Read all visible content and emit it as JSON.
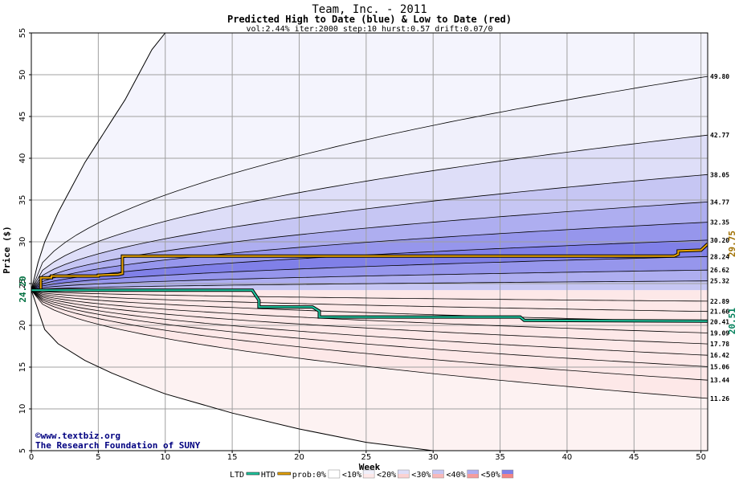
{
  "chart_data": {
    "type": "area",
    "title": "Team, Inc. - 2011",
    "subtitle": "Predicted High to Date (blue) &  Low to Date (red)",
    "params": "vol:2.44% iter:2000 step:10 hurst:0.57 drift:0.07/0",
    "xlabel": "Week",
    "ylabel": "Price ($)",
    "xlim": [
      0,
      50.5
    ],
    "ylim": [
      5,
      55
    ],
    "x_ticks": [
      0,
      5,
      10,
      15,
      20,
      25,
      30,
      35,
      40,
      45,
      50
    ],
    "y_ticks": [
      5,
      10,
      15,
      20,
      25,
      30,
      35,
      40,
      45,
      50,
      55
    ],
    "grid": true,
    "start_price": 24.2,
    "start_price_label": "24.20",
    "upper_bands": [
      {
        "end": 49.8,
        "label": "49.80",
        "fill": "#f0f0fb"
      },
      {
        "end": 42.77,
        "label": "42.77",
        "fill": "#dedef8"
      },
      {
        "end": 38.05,
        "label": "38.05",
        "fill": "#c6c6f3"
      },
      {
        "end": 34.77,
        "label": "34.77",
        "fill": "#aeaef0"
      },
      {
        "end": 32.35,
        "label": "32.35",
        "fill": "#9696ec"
      },
      {
        "end": 30.2,
        "label": "30.20",
        "fill": "#8080e8"
      },
      {
        "end": 28.24,
        "label": "28.24",
        "fill": "#9696ec"
      },
      {
        "end": 26.62,
        "label": "26.62",
        "fill": "#aeaef0"
      },
      {
        "end": 25.32,
        "label": "25.32",
        "fill": "#c6c6f3"
      }
    ],
    "lower_bands": [
      {
        "end": 22.89,
        "label": "22.89",
        "fill": "#fde8e8"
      },
      {
        "end": 21.66,
        "label": "21.66",
        "fill": "#fbd2d2"
      },
      {
        "end": 20.41,
        "label": "20.41",
        "fill": "#f8b8b8"
      },
      {
        "end": 19.09,
        "label": "19.09",
        "fill": "#f59c9c"
      },
      {
        "end": 17.78,
        "label": "17.78",
        "fill": "#f38484"
      },
      {
        "end": 16.42,
        "label": "16.42",
        "fill": "#f59c9c"
      },
      {
        "end": 15.06,
        "label": "15.06",
        "fill": "#f8b8b8"
      },
      {
        "end": 13.44,
        "label": "13.44",
        "fill": "#fbd2d2"
      },
      {
        "end": 11.26,
        "label": "11.26",
        "fill": "#fde8e8"
      }
    ],
    "outer_upper": {
      "x": [
        0,
        0.5,
        1,
        2,
        3,
        4,
        5,
        6,
        7,
        8,
        9,
        10
      ],
      "y": [
        24.2,
        27.5,
        30.0,
        33.5,
        36.5,
        39.5,
        42.0,
        44.5,
        47.0,
        50.0,
        53.0,
        55.0
      ]
    },
    "outer_lower": {
      "x": [
        0,
        1,
        2,
        4,
        6,
        8,
        10,
        15,
        20,
        25,
        30
      ],
      "y": [
        24.2,
        19.5,
        17.8,
        15.8,
        14.3,
        13.0,
        11.8,
        9.5,
        7.6,
        6.0,
        5.0
      ]
    },
    "series": [
      {
        "name": "HTD",
        "color": "#e8a400",
        "x": [
          0,
          0.7,
          0.7,
          1.5,
          1.5,
          5.0,
          5.0,
          6.5,
          6.8,
          6.8,
          48.0,
          48.3,
          48.3,
          50.0,
          50.5
        ],
        "y": [
          24.2,
          24.2,
          25.7,
          25.7,
          25.9,
          25.9,
          26.0,
          26.1,
          26.2,
          28.3,
          28.3,
          28.5,
          28.9,
          29.0,
          29.75
        ],
        "end_label": "29.75"
      },
      {
        "name": "LTD",
        "color": "#20c8a0",
        "x": [
          0,
          16.5,
          17.0,
          17.0,
          21.0,
          21.5,
          21.5,
          36.5,
          36.8,
          50.5
        ],
        "y": [
          24.2,
          24.2,
          23.0,
          22.2,
          22.2,
          21.7,
          21.0,
          21.0,
          20.6,
          20.51
        ],
        "end_label": "20.51"
      }
    ],
    "legend": [
      {
        "label": "LTD",
        "kind": "line",
        "color": "#20c8a0"
      },
      {
        "label": "HTD",
        "kind": "line",
        "color": "#e8a400"
      },
      {
        "label": "prob:0%",
        "kind": "swatch",
        "top": "#ffffff",
        "bottom": "#ffffff"
      },
      {
        "label": "<10%",
        "kind": "swatch",
        "top": "#f0f0fb",
        "bottom": "#fde8e8"
      },
      {
        "label": "<20%",
        "kind": "swatch",
        "top": "#dedef8",
        "bottom": "#fbd2d2"
      },
      {
        "label": "<30%",
        "kind": "swatch",
        "top": "#c6c6f3",
        "bottom": "#f8b8b8"
      },
      {
        "label": "<40%",
        "kind": "swatch",
        "top": "#aeaef0",
        "bottom": "#f59c9c"
      },
      {
        "label": "<50%",
        "kind": "swatch",
        "top": "#8080e8",
        "bottom": "#f38484"
      }
    ],
    "watermark": [
      "©www.textbiz.org",
      "The Research Foundation of SUNY"
    ]
  }
}
